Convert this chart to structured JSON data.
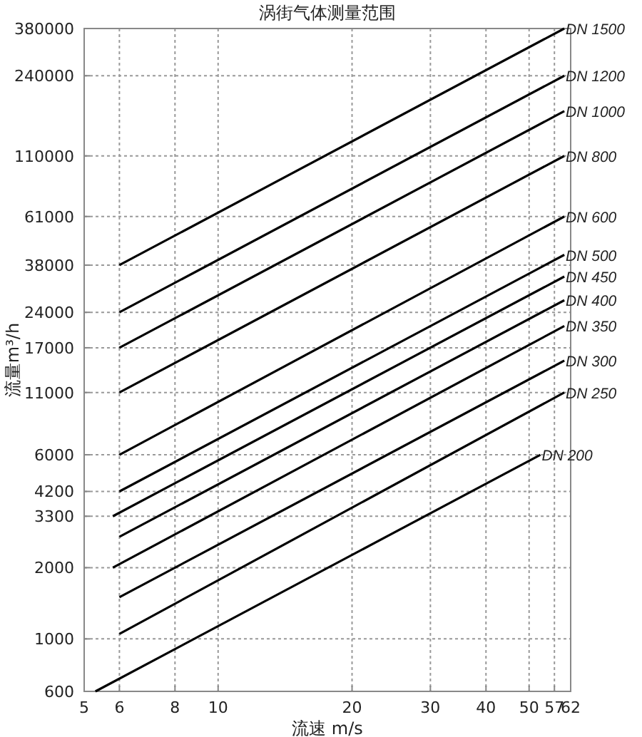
{
  "chart_data": {
    "type": "line",
    "title": "涡街气体测量范围",
    "xlabel": "流速 m/s",
    "ylabel": "流量m³/h",
    "log": "xy",
    "grid": true,
    "legend": false,
    "marker": "none",
    "line_style": "solid",
    "xlim": [
      5,
      62
    ],
    "xticks": [
      5,
      6,
      8,
      10,
      20,
      30,
      40,
      50,
      57,
      62
    ],
    "ylim": [
      600,
      380000
    ],
    "yticks": [
      600,
      1000,
      2000,
      3300,
      4200,
      6000,
      11000,
      17000,
      24000,
      38000,
      61000,
      110000,
      240000,
      380000
    ],
    "series": [
      {
        "name": "DN 1500",
        "color": "#000000",
        "x": [
          6,
          60
        ],
        "values": [
          38000,
          380000
        ]
      },
      {
        "name": "DN 1200",
        "color": "#000000",
        "x": [
          6,
          60
        ],
        "values": [
          24000,
          240000
        ]
      },
      {
        "name": "DN 1000",
        "color": "#000000",
        "x": [
          6,
          60
        ],
        "values": [
          17000,
          170000
        ]
      },
      {
        "name": "DN 800",
        "color": "#000000",
        "x": [
          6,
          60
        ],
        "values": [
          11000,
          110000
        ]
      },
      {
        "name": "DN 600",
        "color": "#000000",
        "x": [
          6,
          60
        ],
        "values": [
          6000,
          61000
        ]
      },
      {
        "name": "DN 500",
        "color": "#000000",
        "x": [
          6,
          60
        ],
        "values": [
          4200,
          42000
        ]
      },
      {
        "name": "DN 450",
        "color": "#000000",
        "x": [
          5.8,
          60
        ],
        "values": [
          3300,
          34000
        ]
      },
      {
        "name": "DN 400",
        "color": "#000000",
        "x": [
          6,
          60
        ],
        "values": [
          2700,
          27000
        ]
      },
      {
        "name": "DN 350",
        "color": "#000000",
        "x": [
          5.8,
          60
        ],
        "values": [
          2000,
          21000
        ]
      },
      {
        "name": "DN 300",
        "color": "#000000",
        "x": [
          6,
          60
        ],
        "values": [
          1500,
          15000
        ]
      },
      {
        "name": "DN 250",
        "color": "#000000",
        "x": [
          6,
          60
        ],
        "values": [
          1050,
          11000
        ]
      },
      {
        "name": "DN 200",
        "color": "#000000",
        "x": [
          5.3,
          53
        ],
        "values": [
          600,
          6000
        ]
      }
    ]
  }
}
